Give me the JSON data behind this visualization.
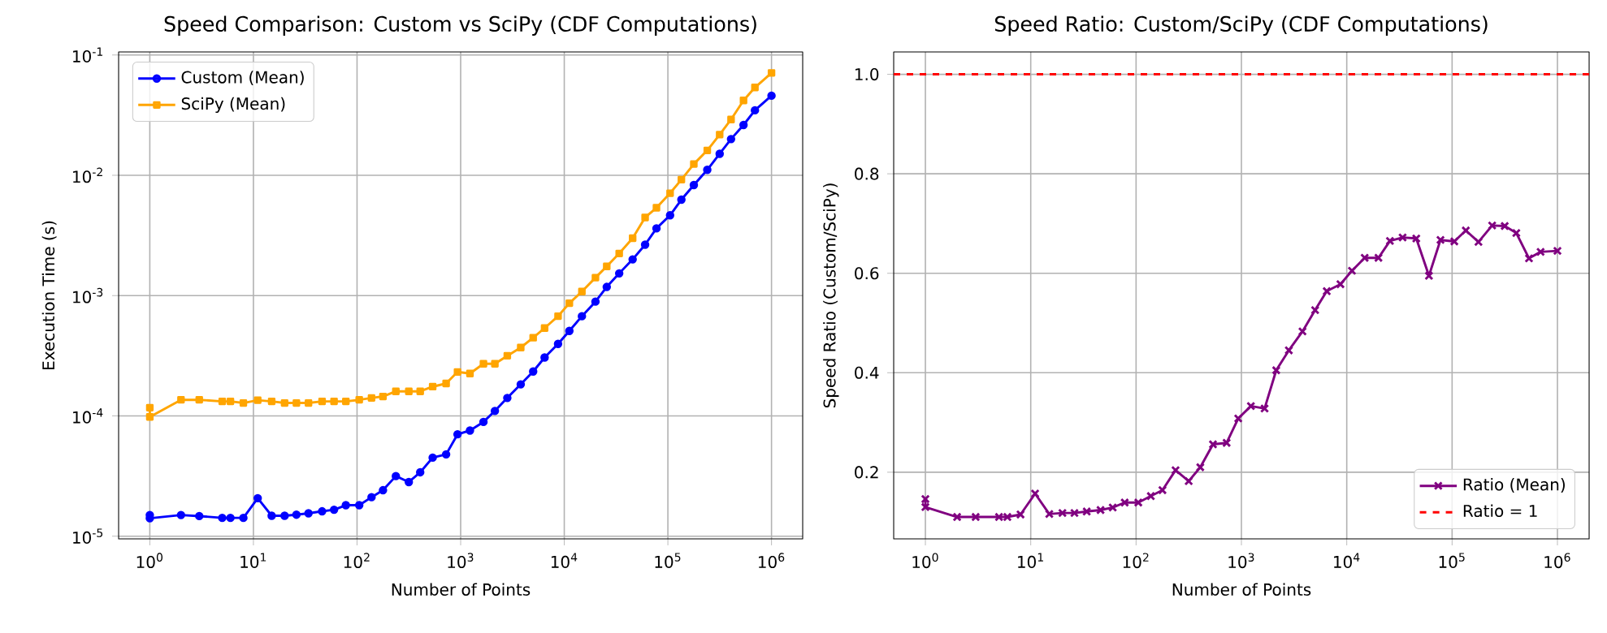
{
  "chart_data": [
    {
      "type": "line",
      "title": "Speed Comparison: Custom vs SciPy (CDF Computations)",
      "xlabel": "Number of Points",
      "ylabel": "Execution Time (s)",
      "log": "xy",
      "grid": true,
      "legend": "top left",
      "line_style": "solid",
      "x": [
        1,
        1,
        2,
        3,
        5,
        6,
        8,
        11,
        15,
        20,
        26,
        34,
        46,
        60,
        78,
        105,
        138,
        178,
        237,
        316,
        407,
        537,
        724,
        933,
        1230,
        1660,
        2140,
        2820,
        3800,
        5010,
        6460,
        8710,
        11200,
        14800,
        20000,
        25700,
        33900,
        45700,
        60300,
        77600,
        105000,
        135000,
        178000,
        240000,
        316000,
        407000,
        537000,
        692000,
        1000000
      ],
      "series": [
        {
          "name": "Custom (Mean)",
          "color": "#0000ff",
          "marker": "circle",
          "values": [
            1.5e-05,
            1.41e-05,
            1.5e-05,
            1.47e-05,
            1.42e-05,
            1.42e-05,
            1.42e-05,
            2.07e-05,
            1.48e-05,
            1.48e-05,
            1.51e-05,
            1.55e-05,
            1.61e-05,
            1.66e-05,
            1.81e-05,
            1.81e-05,
            2.11e-05,
            2.41e-05,
            3.16e-05,
            2.82e-05,
            3.4e-05,
            4.5e-05,
            4.79e-05,
            7.03e-05,
            7.56e-05,
            8.91e-05,
            0.00011,
            0.000141,
            0.000183,
            0.000234,
            0.000306,
            0.000397,
            0.000509,
            0.000674,
            0.000891,
            0.00118,
            0.00153,
            0.002,
            0.00265,
            0.00362,
            0.00465,
            0.00627,
            0.0083,
            0.0111,
            0.0151,
            0.02,
            0.0262,
            0.0347,
            0.0459
          ]
        },
        {
          "name": "SciPy (Mean)",
          "color": "#ffa500",
          "marker": "square",
          "values": [
            0.000117,
            9.8e-05,
            0.000136,
            0.000136,
            0.000132,
            0.000132,
            0.000128,
            0.000135,
            0.000132,
            0.000128,
            0.000128,
            0.000128,
            0.000132,
            0.000132,
            0.000132,
            0.000136,
            0.000141,
            0.000145,
            0.00016,
            0.00016,
            0.00016,
            0.000175,
            0.000186,
            0.000232,
            0.000225,
            0.000271,
            0.000271,
            0.000316,
            0.00037,
            0.000446,
            0.000537,
            0.000674,
            0.000865,
            0.00108,
            0.00141,
            0.00175,
            0.00224,
            0.003,
            0.00446,
            0.00537,
            0.0071,
            0.0092,
            0.0124,
            0.0161,
            0.0218,
            0.0291,
            0.0419,
            0.0537,
            0.071
          ]
        }
      ],
      "xlim": [
        0.5,
        2000000
      ],
      "ylim": [
        9.5e-06,
        0.106
      ],
      "xticks": [
        {
          "value": 1,
          "label": "10$^{0}$"
        },
        {
          "value": 10,
          "label": "10$^{1}$"
        },
        {
          "value": 100,
          "label": "10$^{2}$"
        },
        {
          "value": 1000,
          "label": "10$^{3}$"
        },
        {
          "value": 10000,
          "label": "10$^{4}$"
        },
        {
          "value": 100000,
          "label": "10$^{5}$"
        },
        {
          "value": 1000000,
          "label": "10$^{6}$"
        }
      ],
      "yticks": [
        {
          "value": 1e-05,
          "label": "10$^{-5}$"
        },
        {
          "value": 0.0001,
          "label": "10$^{-4}$"
        },
        {
          "value": 0.001,
          "label": "10$^{-3}$"
        },
        {
          "value": 0.01,
          "label": "10$^{-2}$"
        },
        {
          "value": 0.1,
          "label": "10$^{-1}$"
        }
      ]
    },
    {
      "type": "line",
      "title": "Speed Ratio: Custom/SciPy (CDF Computations)",
      "xlabel": "Number of Points",
      "ylabel": "Speed Ratio (Custom/SciPy)",
      "log": "x",
      "grid": true,
      "legend": "bottom right",
      "line_style": "solid",
      "x": [
        1,
        1,
        2,
        3,
        5,
        6,
        8,
        11,
        15,
        20,
        26,
        34,
        46,
        60,
        78,
        105,
        138,
        178,
        237,
        316,
        407,
        537,
        724,
        933,
        1230,
        1660,
        2140,
        2820,
        3800,
        5010,
        6460,
        8710,
        11200,
        14800,
        20000,
        25700,
        33900,
        45700,
        60300,
        77600,
        105000,
        135000,
        178000,
        240000,
        316000,
        407000,
        537000,
        692000,
        1000000
      ],
      "series": [
        {
          "name": "Ratio (Mean)",
          "color": "#800080",
          "marker": "cross",
          "values": [
            0.146,
            0.13,
            0.11,
            0.11,
            0.11,
            0.11,
            0.115,
            0.157,
            0.116,
            0.118,
            0.118,
            0.121,
            0.124,
            0.129,
            0.139,
            0.139,
            0.152,
            0.164,
            0.204,
            0.182,
            0.21,
            0.256,
            0.259,
            0.308,
            0.333,
            0.328,
            0.405,
            0.445,
            0.483,
            0.526,
            0.564,
            0.578,
            0.605,
            0.631,
            0.631,
            0.665,
            0.672,
            0.67,
            0.595,
            0.667,
            0.664,
            0.686,
            0.663,
            0.696,
            0.695,
            0.681,
            0.63,
            0.643,
            0.645
          ]
        }
      ],
      "ref_lines": [
        {
          "axis": "y",
          "value": 1,
          "label": "Ratio = 1",
          "color": "#ff0000",
          "line_style": "dashed"
        }
      ],
      "xlim": [
        0.5,
        2000000
      ],
      "ylim": [
        0.066,
        1.045
      ],
      "xticks": [
        {
          "value": 1,
          "label": "10$^{0}$"
        },
        {
          "value": 10,
          "label": "10$^{1}$"
        },
        {
          "value": 100,
          "label": "10$^{2}$"
        },
        {
          "value": 1000,
          "label": "10$^{3}$"
        },
        {
          "value": 10000,
          "label": "10$^{4}$"
        },
        {
          "value": 100000,
          "label": "10$^{5}$"
        },
        {
          "value": 1000000,
          "label": "10$^{6}$"
        }
      ],
      "yticks": [
        0.2,
        0.4,
        0.6,
        0.8,
        {
          "value": 1,
          "label": "1.0"
        }
      ]
    }
  ]
}
